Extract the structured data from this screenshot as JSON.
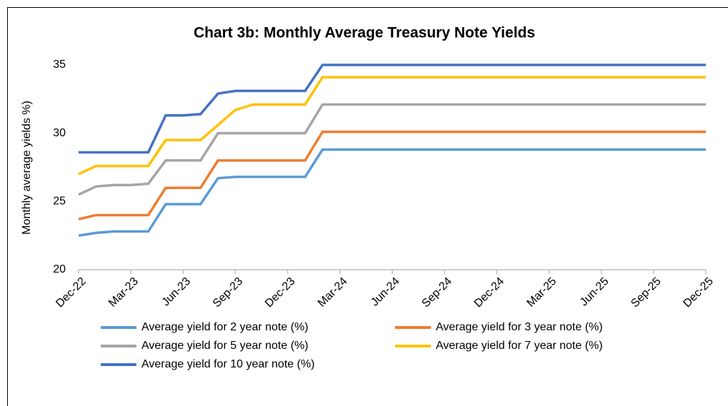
{
  "chart_data": {
    "type": "line",
    "title": "Chart 3b: Monthly Average Treasury Note Yields",
    "y_label": "Monthly average yields %)",
    "categories": [
      "Dec-22",
      null,
      null,
      "Mar-23",
      null,
      null,
      "Jun-23",
      null,
      null,
      "Sep-23",
      null,
      null,
      "Dec-23",
      null,
      null,
      "Mar-24",
      null,
      null,
      "Jun-24",
      null,
      null,
      "Sep-24",
      null,
      null,
      "Dec-24",
      null,
      null,
      "Mar-25",
      null,
      null,
      "Jun-25",
      null,
      null,
      "Sep-25",
      null,
      null,
      "Dec-25"
    ],
    "ylim": [
      20,
      35
    ],
    "yticks": [
      20,
      25,
      30,
      35
    ],
    "series": [
      {
        "name": "Average yield for 2 year note (%)",
        "color": "#5b9bd5",
        "values": [
          22.5,
          22.7,
          22.8,
          22.8,
          22.8,
          24.8,
          24.8,
          24.8,
          26.7,
          26.8,
          26.8,
          26.8,
          26.8,
          26.8,
          28.8,
          28.8,
          28.8,
          28.8,
          28.8,
          28.8,
          28.8,
          28.8,
          28.8,
          28.8,
          28.8,
          28.8,
          28.8,
          28.8,
          28.8,
          28.8,
          28.8,
          28.8,
          28.8,
          28.8,
          28.8,
          28.8,
          28.8
        ]
      },
      {
        "name": "Average yield for 3 year note (%)",
        "color": "#ed7d31",
        "values": [
          23.7,
          24.0,
          24.0,
          24.0,
          24.0,
          26.0,
          26.0,
          26.0,
          28.0,
          28.0,
          28.0,
          28.0,
          28.0,
          28.0,
          30.1,
          30.1,
          30.1,
          30.1,
          30.1,
          30.1,
          30.1,
          30.1,
          30.1,
          30.1,
          30.1,
          30.1,
          30.1,
          30.1,
          30.1,
          30.1,
          30.1,
          30.1,
          30.1,
          30.1,
          30.1,
          30.1,
          30.1
        ]
      },
      {
        "name": "Average yield for 5 year note (%)",
        "color": "#a5a5a5",
        "values": [
          25.5,
          26.1,
          26.2,
          26.2,
          26.3,
          28.0,
          28.0,
          28.0,
          30.0,
          30.0,
          30.0,
          30.0,
          30.0,
          30.0,
          32.1,
          32.1,
          32.1,
          32.1,
          32.1,
          32.1,
          32.1,
          32.1,
          32.1,
          32.1,
          32.1,
          32.1,
          32.1,
          32.1,
          32.1,
          32.1,
          32.1,
          32.1,
          32.1,
          32.1,
          32.1,
          32.1,
          32.1
        ]
      },
      {
        "name": "Average yield for 7 year note (%)",
        "color": "#ffc000",
        "values": [
          27.0,
          27.6,
          27.6,
          27.6,
          27.6,
          29.5,
          29.5,
          29.5,
          30.6,
          31.7,
          32.1,
          32.1,
          32.1,
          32.1,
          34.1,
          34.1,
          34.1,
          34.1,
          34.1,
          34.1,
          34.1,
          34.1,
          34.1,
          34.1,
          34.1,
          34.1,
          34.1,
          34.1,
          34.1,
          34.1,
          34.1,
          34.1,
          34.1,
          34.1,
          34.1,
          34.1,
          34.1
        ]
      },
      {
        "name": "Average yield for 10 year note (%)",
        "color": "#4472c4",
        "values": [
          28.6,
          28.6,
          28.6,
          28.6,
          28.6,
          31.3,
          31.3,
          31.4,
          32.9,
          33.1,
          33.1,
          33.1,
          33.1,
          33.1,
          35.0,
          35.0,
          35.0,
          35.0,
          35.0,
          35.0,
          35.0,
          35.0,
          35.0,
          35.0,
          35.0,
          35.0,
          35.0,
          35.0,
          35.0,
          35.0,
          35.0,
          35.0,
          35.0,
          35.0,
          35.0,
          35.0,
          35.0
        ]
      }
    ]
  }
}
